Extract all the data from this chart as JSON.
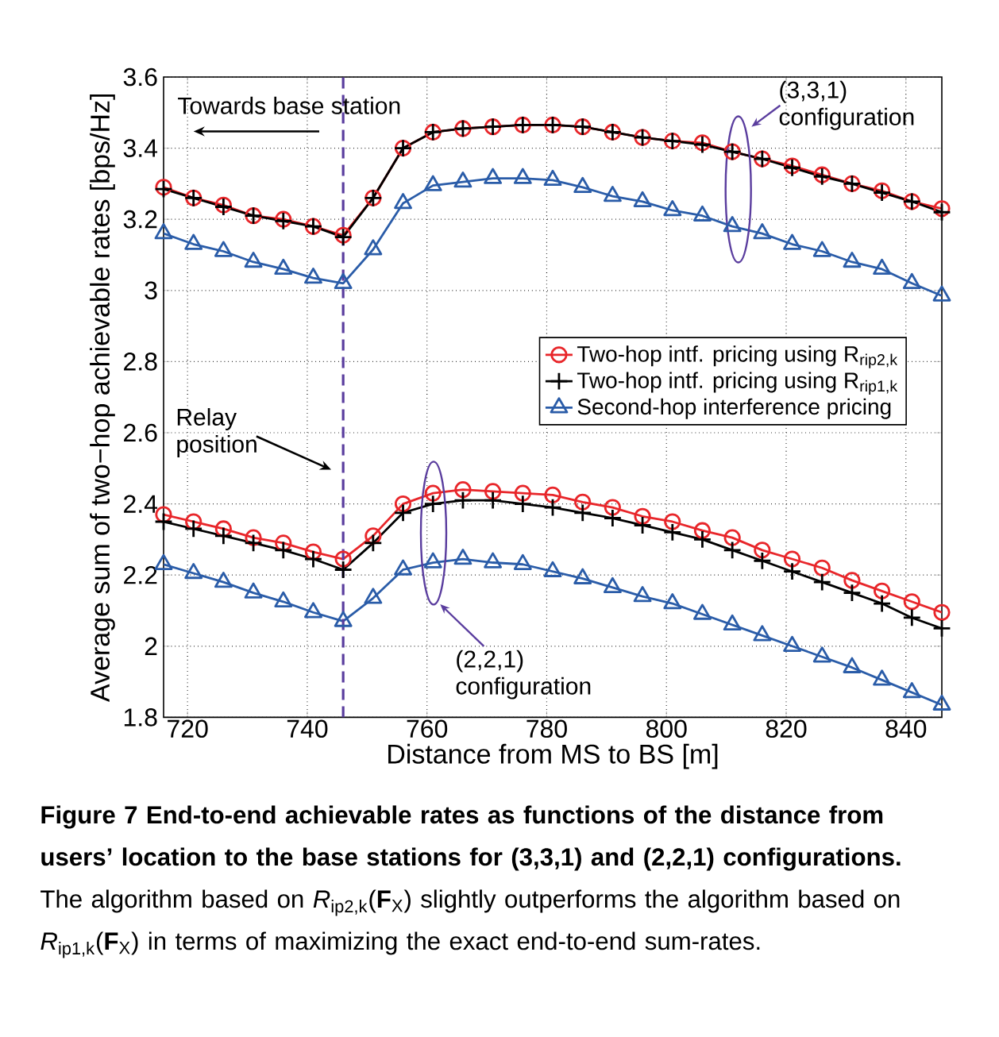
{
  "chart_data": {
    "type": "line",
    "xlabel": "Distance from MS to BS [m]",
    "ylabel": "Average sum of two−hop achievable rates [bps/Hz]",
    "x": [
      716,
      721,
      726,
      731,
      736,
      741,
      746,
      751,
      756,
      761,
      766,
      771,
      776,
      781,
      786,
      791,
      796,
      801,
      806,
      811,
      816,
      821,
      826,
      831,
      836,
      841,
      846
    ],
    "xlim": [
      716,
      846
    ],
    "xticks": [
      720,
      740,
      760,
      780,
      800,
      820,
      840
    ],
    "ylim": [
      1.8,
      3.6
    ],
    "yticks": [
      1.8,
      2,
      2.2,
      2.4,
      2.6,
      2.8,
      3,
      3.2,
      3.4,
      3.6
    ],
    "grid": true,
    "legend": "right",
    "line_style": "solid",
    "series": [
      {
        "name": "Two-hop intf. pricing using R$_{rip2,k}$",
        "color": "#e8262a",
        "marker": "circle",
        "values": [
          3.29,
          3.26,
          3.24,
          3.21,
          3.2,
          3.18,
          3.155,
          3.26,
          3.4,
          3.445,
          3.455,
          3.46,
          3.465,
          3.465,
          3.46,
          3.445,
          3.43,
          3.42,
          3.415,
          3.39,
          3.37,
          3.35,
          3.325,
          3.3,
          3.28,
          3.25,
          3.23
        ]
      },
      {
        "name": "Two-hop intf. pricing using R$_{rip1,k}$",
        "color": "#000000",
        "marker": "cross",
        "values": [
          3.285,
          3.26,
          3.235,
          3.21,
          3.195,
          3.18,
          3.15,
          3.26,
          3.4,
          3.445,
          3.455,
          3.46,
          3.465,
          3.465,
          3.46,
          3.445,
          3.43,
          3.42,
          3.41,
          3.39,
          3.37,
          3.345,
          3.32,
          3.3,
          3.275,
          3.25,
          3.22
        ]
      },
      {
        "name": "Second-hop interference pricing",
        "color": "#2a5ca8",
        "marker": "triangle",
        "values": [
          3.16,
          3.13,
          3.11,
          3.08,
          3.06,
          3.035,
          3.02,
          3.115,
          3.245,
          3.295,
          3.305,
          3.315,
          3.315,
          3.31,
          3.29,
          3.265,
          3.25,
          3.225,
          3.21,
          3.18,
          3.16,
          3.13,
          3.11,
          3.08,
          3.06,
          3.02,
          2.985
        ]
      },
      {
        "color": "#e8262a",
        "marker": "circle",
        "values": [
          2.37,
          2.35,
          2.33,
          2.305,
          2.29,
          2.265,
          2.245,
          2.31,
          2.4,
          2.43,
          2.44,
          2.435,
          2.43,
          2.425,
          2.405,
          2.39,
          2.365,
          2.35,
          2.325,
          2.305,
          2.27,
          2.245,
          2.22,
          2.185,
          2.155,
          2.125,
          2.095
        ]
      },
      {
        "color": "#000000",
        "marker": "cross",
        "values": [
          2.35,
          2.33,
          2.31,
          2.29,
          2.27,
          2.245,
          2.215,
          2.29,
          2.375,
          2.4,
          2.41,
          2.41,
          2.4,
          2.39,
          2.375,
          2.36,
          2.34,
          2.32,
          2.3,
          2.27,
          2.24,
          2.21,
          2.18,
          2.15,
          2.12,
          2.08,
          2.05
        ]
      },
      {
        "color": "#2a5ca8",
        "marker": "triangle",
        "values": [
          2.23,
          2.205,
          2.18,
          2.15,
          2.125,
          2.095,
          2.07,
          2.135,
          2.215,
          2.235,
          2.245,
          2.235,
          2.23,
          2.21,
          2.19,
          2.165,
          2.14,
          2.12,
          2.09,
          2.06,
          2.03,
          2.0,
          1.97,
          1.94,
          1.905,
          1.87,
          1.835
        ]
      }
    ],
    "ref_lines": [
      {
        "axis": "x",
        "value": 746,
        "color": "#5a3d9e",
        "line_style": "dashed"
      }
    ],
    "annotations": [
      "Towards base station",
      "Relay position",
      "(3,3,1) configuration",
      "(2,2,1) configuration",
      "**Figure 7 End-to-end achievable rates as functions of the distance from users’ location to the base stations for (3,3,1) and (2,2,1) configurations.** The algorithm based on *R*$_{ip2,k}$(**F**$_{X}$) slightly outperforms the algorithm based on *R*$_{ip1,k}$(**F**$_{X}$) in terms of maximizing the exact end-to-end sum-rates."
    ]
  }
}
